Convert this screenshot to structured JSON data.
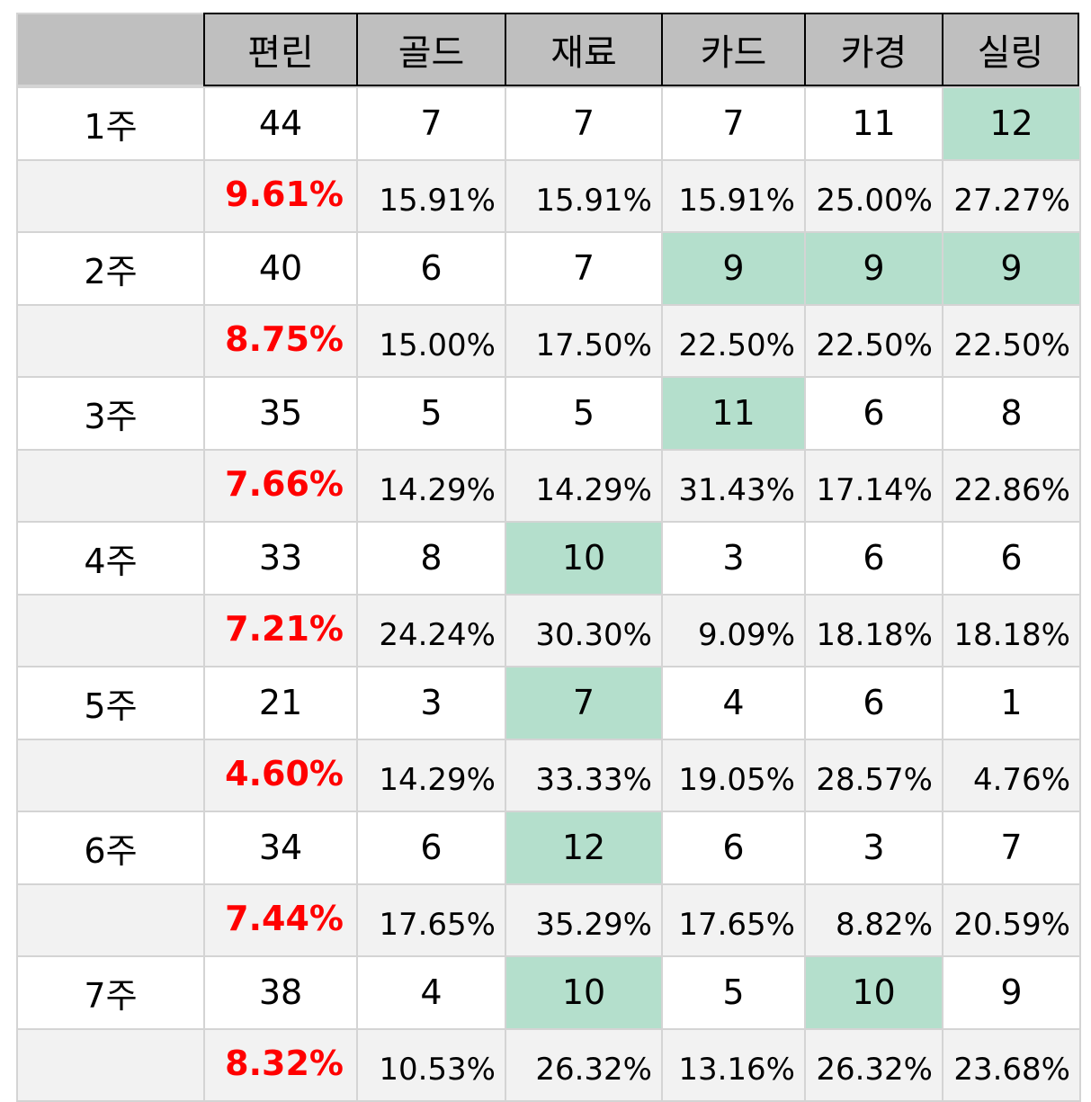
{
  "table": {
    "headers": [
      "",
      "편린",
      "골드",
      "재료",
      "카드",
      "카경",
      "실링"
    ],
    "rows": [
      {
        "week": "1주",
        "counts": [
          "44",
          "7",
          "7",
          "7",
          "11",
          "12"
        ],
        "highlight": [
          false,
          false,
          false,
          false,
          false,
          true
        ],
        "percents": [
          "9.61%",
          "15.91%",
          "15.91%",
          "15.91%",
          "25.00%",
          "27.27%"
        ]
      },
      {
        "week": "2주",
        "counts": [
          "40",
          "6",
          "7",
          "9",
          "9",
          "9"
        ],
        "highlight": [
          false,
          false,
          false,
          true,
          true,
          true
        ],
        "percents": [
          "8.75%",
          "15.00%",
          "17.50%",
          "22.50%",
          "22.50%",
          "22.50%"
        ]
      },
      {
        "week": "3주",
        "counts": [
          "35",
          "5",
          "5",
          "11",
          "6",
          "8"
        ],
        "highlight": [
          false,
          false,
          false,
          true,
          false,
          false
        ],
        "percents": [
          "7.66%",
          "14.29%",
          "14.29%",
          "31.43%",
          "17.14%",
          "22.86%"
        ]
      },
      {
        "week": "4주",
        "counts": [
          "33",
          "8",
          "10",
          "3",
          "6",
          "6"
        ],
        "highlight": [
          false,
          false,
          true,
          false,
          false,
          false
        ],
        "percents": [
          "7.21%",
          "24.24%",
          "30.30%",
          "9.09%",
          "18.18%",
          "18.18%"
        ]
      },
      {
        "week": "5주",
        "counts": [
          "21",
          "3",
          "7",
          "4",
          "6",
          "1"
        ],
        "highlight": [
          false,
          false,
          true,
          false,
          false,
          false
        ],
        "percents": [
          "4.60%",
          "14.29%",
          "33.33%",
          "19.05%",
          "28.57%",
          "4.76%"
        ]
      },
      {
        "week": "6주",
        "counts": [
          "34",
          "6",
          "12",
          "6",
          "3",
          "7"
        ],
        "highlight": [
          false,
          false,
          true,
          false,
          false,
          false
        ],
        "percents": [
          "7.44%",
          "17.65%",
          "35.29%",
          "17.65%",
          "8.82%",
          "20.59%"
        ]
      },
      {
        "week": "7주",
        "counts": [
          "38",
          "4",
          "10",
          "5",
          "10",
          "9"
        ],
        "highlight": [
          false,
          false,
          true,
          false,
          true,
          false
        ],
        "percents": [
          "8.32%",
          "10.53%",
          "26.32%",
          "13.16%",
          "26.32%",
          "23.68%"
        ]
      }
    ]
  },
  "colors": {
    "header_bg": "#bfbfbf",
    "highlight": "#b4dfcc",
    "percent_row_bg": "#f2f2f2",
    "percent_accent": "#ff0000"
  }
}
